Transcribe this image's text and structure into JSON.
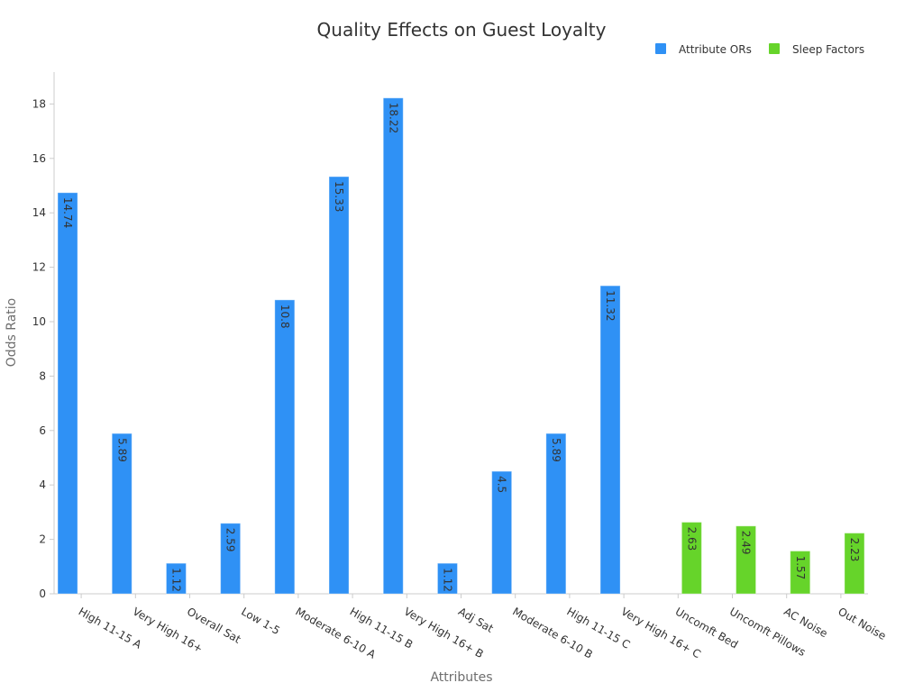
{
  "chart_data": {
    "type": "bar",
    "title": "Quality Effects on Guest Loyalty",
    "xlabel": "Attributes",
    "ylabel": "Odds Ratio",
    "ylim": [
      0,
      19
    ],
    "yticks": [
      0,
      2,
      4,
      6,
      8,
      10,
      12,
      14,
      16,
      18
    ],
    "grid": false,
    "legend_position": "top-right",
    "categories": [
      "High 11-15 A",
      "Very High 16+",
      "Overall Sat",
      "Low 1-5",
      "Moderate 6-10 A",
      "High 11-15 B",
      "Very High 16+ B",
      "Adj Sat",
      "Moderate 6-10 B",
      "High 11-15 C",
      "Very High 16+ C",
      "Uncomft Bed",
      "Uncomft Pillows",
      "AC Noise",
      "Out Noise"
    ],
    "series": [
      {
        "name": "Attribute ORs",
        "color": "#2f91f5",
        "values": [
          14.74,
          5.89,
          1.12,
          2.59,
          10.8,
          15.33,
          18.22,
          1.12,
          4.5,
          5.89,
          11.32,
          null,
          null,
          null,
          null
        ],
        "labels": [
          "14.74",
          "5.89",
          "1.12",
          "2.59",
          "10.8",
          "15.33",
          "18.22",
          "1.12",
          "4.5",
          "5.89",
          "11.32",
          "",
          "",
          "",
          ""
        ]
      },
      {
        "name": "Sleep Factors",
        "color": "#66d42a",
        "values": [
          null,
          null,
          null,
          null,
          null,
          null,
          null,
          null,
          null,
          null,
          null,
          2.63,
          2.49,
          1.57,
          2.23
        ],
        "labels": [
          "",
          "",
          "",
          "",
          "",
          "",
          "",
          "",
          "",
          "",
          "",
          "2.63",
          "2.49",
          "1.57",
          "2.23"
        ]
      }
    ]
  }
}
